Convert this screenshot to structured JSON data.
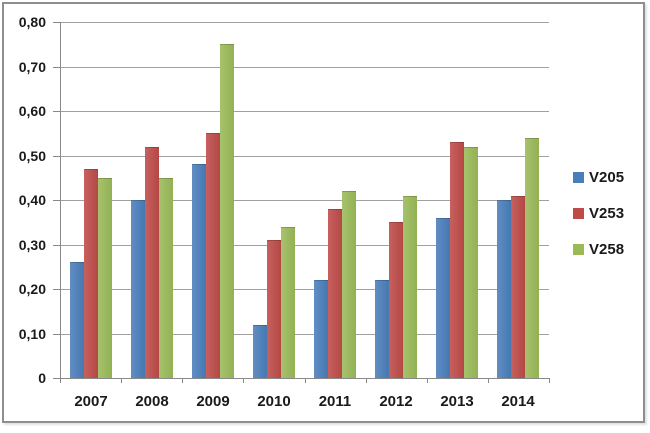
{
  "chart_data": {
    "type": "bar",
    "title": "",
    "xlabel": "",
    "ylabel": "",
    "categories": [
      "2007",
      "2008",
      "2009",
      "2010",
      "2011",
      "2012",
      "2013",
      "2014"
    ],
    "series": [
      {
        "name": "V205",
        "color": "#4A7EBB",
        "values": [
          0.26,
          0.4,
          0.48,
          0.12,
          0.22,
          0.22,
          0.36,
          0.4
        ]
      },
      {
        "name": "V253",
        "color": "#BE4B48",
        "values": [
          0.47,
          0.52,
          0.55,
          0.31,
          0.38,
          0.35,
          0.53,
          0.41
        ]
      },
      {
        "name": "V258",
        "color": "#9ABA58",
        "values": [
          0.45,
          0.45,
          0.75,
          0.34,
          0.42,
          0.41,
          0.52,
          0.54
        ]
      }
    ],
    "ylim": [
      0,
      0.8
    ],
    "yticks": [
      0,
      0.1,
      0.2,
      0.3,
      0.4,
      0.5,
      0.6,
      0.7,
      0.8
    ],
    "ytick_labels": [
      "0",
      "0,10",
      "0,20",
      "0,30",
      "0,40",
      "0,50",
      "0,60",
      "0,70",
      "0,80"
    ],
    "grid": true,
    "legend_position": "right"
  },
  "colors": {
    "background": "#ffffff",
    "frame_border": "#8e8e8e",
    "gridline": "#a0a0a0",
    "axis": "#898989",
    "text": "#1a1a1a"
  }
}
